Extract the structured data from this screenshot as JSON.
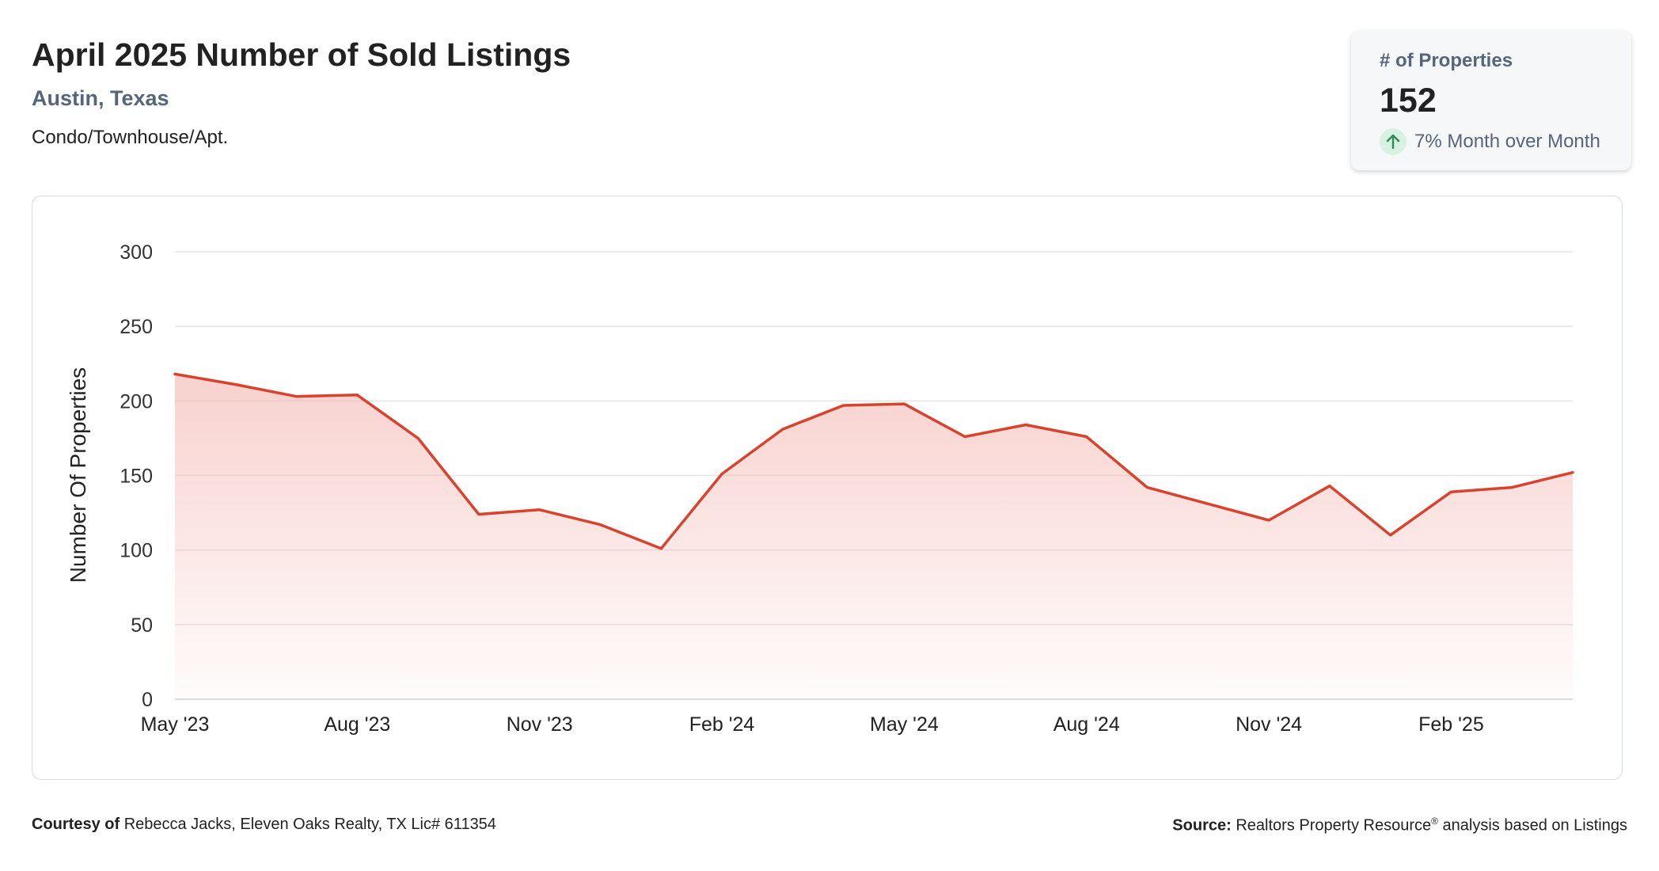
{
  "header": {
    "title": "April 2025 Number of Sold Listings",
    "location": "Austin, Texas",
    "property_type": "Condo/Townhouse/Apt."
  },
  "kpi": {
    "label": "# of Properties",
    "value": "152",
    "change": "7% Month over Month",
    "trend": "up",
    "arrow_icon": "arrow-up-icon",
    "arrow_color": "#2e8b57"
  },
  "chart_data": {
    "type": "area",
    "ylabel": "Number Of Properties",
    "ylim": [
      0,
      300
    ],
    "yticks": [
      0,
      50,
      100,
      150,
      200,
      250,
      300
    ],
    "x": [
      "May '23",
      "Jun '23",
      "Jul '23",
      "Aug '23",
      "Sep '23",
      "Oct '23",
      "Nov '23",
      "Dec '23",
      "Jan '24",
      "Feb '24",
      "Mar '24",
      "Apr '24",
      "May '24",
      "Jun '24",
      "Jul '24",
      "Aug '24",
      "Sep '24",
      "Oct '24",
      "Nov '24",
      "Dec '24",
      "Jan '25",
      "Feb '25",
      "Mar '25",
      "Apr '25"
    ],
    "xtick_labels": [
      "May '23",
      "Aug '23",
      "Nov '23",
      "Feb '24",
      "May '24",
      "Aug '24",
      "Nov '24",
      "Feb '25"
    ],
    "series": [
      {
        "values": [
          218,
          211,
          203,
          204,
          175,
          124,
          127,
          117,
          101,
          151,
          181,
          197,
          198,
          176,
          184,
          176,
          142,
          131,
          120,
          143,
          110,
          139,
          142,
          152
        ],
        "color": "#d9432e"
      }
    ],
    "grid": true,
    "fill_color": "#f3b3ad"
  },
  "footer": {
    "courtesy_label": "Courtesy of",
    "courtesy_text": "Rebecca Jacks, Eleven Oaks Realty, TX Lic# 611354",
    "source_label": "Source:",
    "source_text": "Realtors Property Resource",
    "source_mark": "®",
    "source_suffix": "analysis based on Listings"
  }
}
